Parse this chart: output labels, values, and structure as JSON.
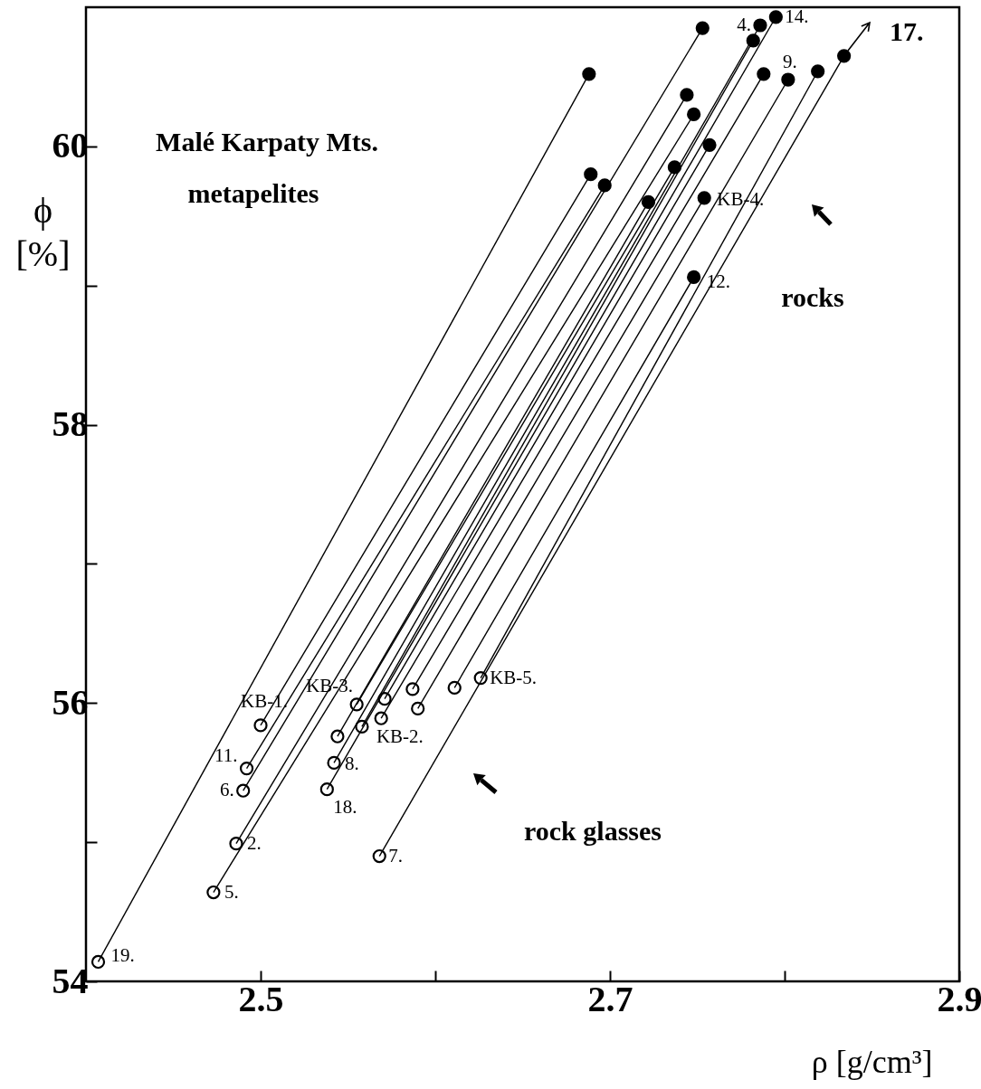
{
  "chart_data": {
    "type": "scatter",
    "xlabel": "ρ [g/cm³]",
    "ylabel": "ϕ [%]",
    "xlim": [
      2.4,
      2.9
    ],
    "ylim": [
      54,
      61
    ],
    "xticks": [
      2.5,
      {
        "value": 2.6,
        "label": null
      },
      2.7,
      {
        "value": 2.8,
        "label": null
      },
      2.9
    ],
    "yticks": [
      54,
      {
        "value": 55,
        "label": null
      },
      56,
      {
        "value": 57,
        "label": null
      },
      58,
      {
        "value": 59,
        "label": null
      },
      60
    ],
    "series": [
      {
        "type": "line",
        "color": "#000000",
        "marker": "none",
        "line_style": "solid",
        "x": [
          2.407,
          2.688
        ],
        "values": [
          54.14,
          60.52
        ]
      },
      {
        "type": "line",
        "color": "#000000",
        "marker": "none",
        "line_style": "solid",
        "x": [
          2.473,
          2.748
        ],
        "values": [
          54.64,
          60.23
        ]
      },
      {
        "type": "line",
        "color": "#000000",
        "marker": "none",
        "line_style": "solid",
        "x": [
          2.486,
          2.744
        ],
        "values": [
          54.99,
          60.37
        ]
      },
      {
        "type": "line",
        "color": "#000000",
        "marker": "none",
        "line_style": "solid",
        "x": [
          2.49,
          2.753
        ],
        "values": [
          55.37,
          60.85
        ]
      },
      {
        "type": "line",
        "color": "#000000",
        "marker": "none",
        "line_style": "solid",
        "x": [
          2.492,
          2.697
        ],
        "values": [
          55.53,
          59.72
        ]
      },
      {
        "type": "line",
        "color": "#000000",
        "marker": "none",
        "line_style": "solid",
        "x": [
          2.5,
          2.689
        ],
        "values": [
          55.84,
          59.8
        ]
      },
      {
        "type": "line",
        "color": "#000000",
        "marker": "none",
        "line_style": "solid",
        "x": [
          2.538,
          2.795
        ],
        "values": [
          55.38,
          60.93
        ]
      },
      {
        "type": "line",
        "color": "#000000",
        "marker": "none",
        "line_style": "solid",
        "x": [
          2.542,
          2.786
        ],
        "values": [
          55.57,
          60.87
        ]
      },
      {
        "type": "line",
        "color": "#000000",
        "marker": "none",
        "line_style": "solid",
        "x": [
          2.544,
          2.722
        ],
        "values": [
          55.76,
          59.6
        ]
      },
      {
        "type": "line",
        "color": "#000000",
        "marker": "none",
        "line_style": "solid",
        "x": [
          2.558,
          2.782
        ],
        "values": [
          55.83,
          60.76
        ]
      },
      {
        "type": "line",
        "color": "#000000",
        "marker": "none",
        "line_style": "solid",
        "x": [
          2.555,
          2.737
        ],
        "values": [
          55.99,
          59.85
        ]
      },
      {
        "type": "line",
        "color": "#000000",
        "marker": "none",
        "line_style": "solid",
        "x": [
          2.569,
          2.788
        ],
        "values": [
          55.89,
          60.52
        ]
      },
      {
        "type": "line",
        "color": "#000000",
        "marker": "none",
        "line_style": "solid",
        "x": [
          2.571,
          2.757
        ],
        "values": [
          56.03,
          60.01
        ]
      },
      {
        "type": "line",
        "color": "#000000",
        "marker": "none",
        "line_style": "solid",
        "x": [
          2.568,
          2.834
        ],
        "values": [
          54.9,
          60.65
        ]
      },
      {
        "type": "line",
        "color": "#000000",
        "marker": "none",
        "line_style": "solid",
        "x": [
          2.587,
          2.754
        ],
        "values": [
          56.1,
          59.63
        ]
      },
      {
        "type": "line",
        "color": "#000000",
        "marker": "none",
        "line_style": "solid",
        "x": [
          2.59,
          2.802
        ],
        "values": [
          55.96,
          60.48
        ]
      },
      {
        "type": "line",
        "color": "#000000",
        "marker": "none",
        "line_style": "solid",
        "x": [
          2.611,
          2.748
        ],
        "values": [
          56.11,
          59.06
        ]
      },
      {
        "type": "line",
        "color": "#000000",
        "marker": "none",
        "line_style": "solid",
        "x": [
          2.626,
          2.819
        ],
        "values": [
          56.18,
          60.54
        ]
      },
      {
        "type": "scatter",
        "color": "#ffffff",
        "marker": "circle",
        "x": [
          2.407,
          2.473,
          2.486,
          2.49,
          2.492,
          2.5,
          2.538,
          2.542,
          2.544,
          2.558,
          2.555,
          2.569,
          2.571,
          2.568,
          2.587,
          2.59,
          2.611,
          2.626
        ],
        "values": [
          54.14,
          54.64,
          54.99,
          55.37,
          55.53,
          55.84,
          55.38,
          55.57,
          55.76,
          55.83,
          55.99,
          55.89,
          56.03,
          54.9,
          56.1,
          55.96,
          56.11,
          56.18
        ]
      },
      {
        "type": "scatter",
        "color": "#000000",
        "marker": "circle",
        "x": [
          2.688,
          2.748,
          2.744,
          2.753,
          2.697,
          2.689,
          2.795,
          2.786,
          2.722,
          2.782,
          2.737,
          2.788,
          2.757,
          2.834,
          2.754,
          2.802,
          2.748,
          2.819
        ],
        "values": [
          60.52,
          60.23,
          60.37,
          60.85,
          59.72,
          59.8,
          60.93,
          60.87,
          59.6,
          60.76,
          59.85,
          60.52,
          60.01,
          60.65,
          59.63,
          60.48,
          59.06,
          60.54
        ]
      }
    ],
    "annotations": [
      "Malé Karpaty Mts.",
      "metapelites",
      "rocks",
      "rock glasses",
      "17.",
      {
        "text": "19.",
        "x": 2.407,
        "y": 54.14
      },
      {
        "text": "5.",
        "x": 2.473,
        "y": 54.64
      },
      {
        "text": "2.",
        "x": 2.486,
        "y": 54.99
      },
      {
        "text": "6.",
        "x": 2.49,
        "y": 55.37
      },
      {
        "text": "11.",
        "x": 2.492,
        "y": 55.53
      },
      {
        "text": "KB-1.",
        "x": 2.5,
        "y": 55.84
      },
      {
        "text": "18.",
        "x": 2.538,
        "y": 55.38
      },
      {
        "text": "8.",
        "x": 2.542,
        "y": 55.57
      },
      {
        "text": "KB-3.",
        "x": 2.555,
        "y": 55.99
      },
      {
        "text": "KB-2.",
        "x": 2.558,
        "y": 55.83
      },
      {
        "text": "7.",
        "x": 2.568,
        "y": 54.9
      },
      {
        "text": "KB-5.",
        "x": 2.626,
        "y": 56.18
      },
      {
        "text": "4.",
        "x": 2.786,
        "y": 60.87
      },
      {
        "text": "14.",
        "x": 2.795,
        "y": 60.93
      },
      {
        "text": "9.",
        "x": 2.802,
        "y": 60.48
      },
      {
        "text": "KB-4.",
        "x": 2.754,
        "y": 59.63
      },
      {
        "text": "12.",
        "x": 2.748,
        "y": 59.06
      }
    ]
  }
}
